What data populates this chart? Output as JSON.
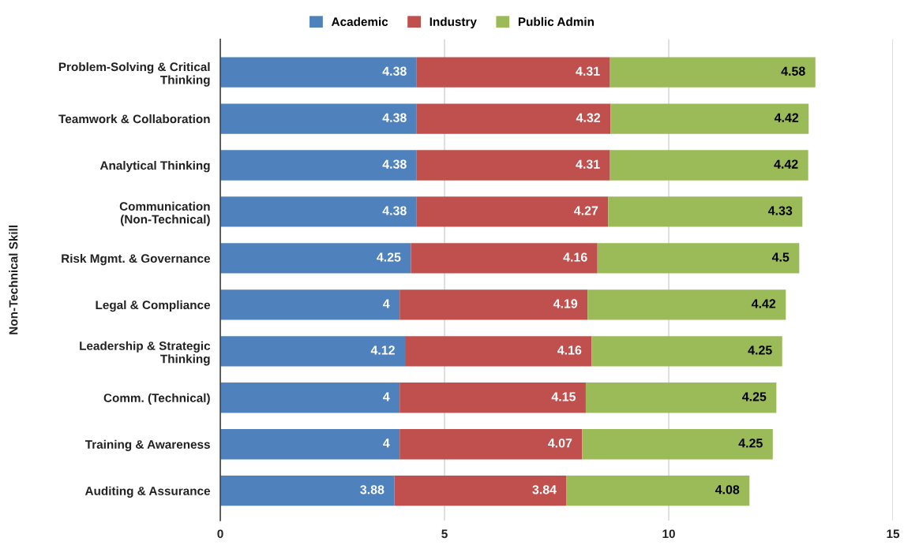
{
  "chart_data": {
    "type": "bar",
    "orientation": "horizontal",
    "stacked": true,
    "ylabel": "Non-Technical Skill",
    "categories": [
      "Problem-Solving & Critical Thinking",
      "Teamwork & Collaboration",
      "Analytical Thinking",
      "Communication (Non-Technical)",
      "Risk Mgmt. & Governance",
      "Legal & Compliance",
      "Leadership & Strategic Thinking",
      "Comm. (Technical)",
      "Training & Awareness",
      "Auditing & Assurance"
    ],
    "series": [
      {
        "name": "Academic",
        "color": "#4f81bd",
        "values": [
          4.38,
          4.38,
          4.38,
          4.38,
          4.25,
          4,
          4.12,
          4,
          4,
          3.88
        ]
      },
      {
        "name": "Industry",
        "color": "#c0504d",
        "values": [
          4.31,
          4.32,
          4.31,
          4.27,
          4.16,
          4.19,
          4.16,
          4.15,
          4.07,
          3.84
        ]
      },
      {
        "name": "Public Admin",
        "color": "#9bbb59",
        "values": [
          4.58,
          4.42,
          4.42,
          4.33,
          4.5,
          4.42,
          4.25,
          4.25,
          4.25,
          4.08
        ]
      }
    ],
    "xlim": [
      0,
      15
    ],
    "xticks": [
      0,
      5,
      10,
      15
    ],
    "grid": "x",
    "legend": "top",
    "data_labels": true
  }
}
